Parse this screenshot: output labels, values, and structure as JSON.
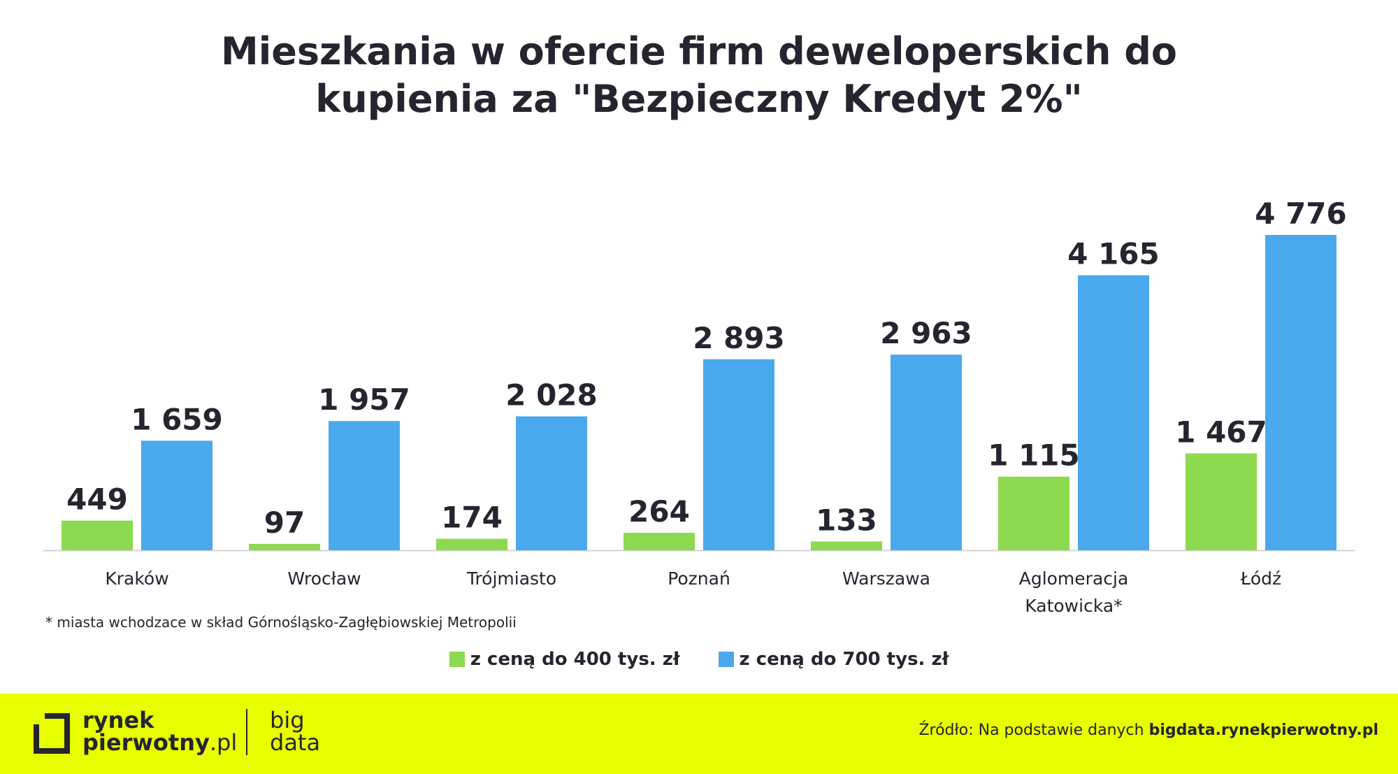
{
  "title_lines": [
    "Mieszkania w ofercie firm deweloperskich do",
    "kupienia za \"Bezpieczny Kredyt 2%\""
  ],
  "chart_data": {
    "type": "bar",
    "categories": [
      "Kraków",
      "Wrocław",
      "Trójmiasto",
      "Poznań",
      "Warszawa",
      "Aglomeracja Katowicka*",
      "Łódź"
    ],
    "category_lines": [
      [
        "Kraków"
      ],
      [
        "Wrocław"
      ],
      [
        "Trójmiasto"
      ],
      [
        "Poznań"
      ],
      [
        "Warszawa"
      ],
      [
        "Aglomeracja",
        "Katowicka*"
      ],
      [
        "Łódź"
      ]
    ],
    "series": [
      {
        "name": "z ceną do 400 tys. zł",
        "color": "#8dd94f",
        "values": [
          449,
          97,
          174,
          264,
          133,
          1115,
          1467
        ],
        "labels": [
          "449",
          "97",
          "174",
          "264",
          "133",
          "1 115",
          "1 467"
        ]
      },
      {
        "name": "z ceną do 700 tys. zł",
        "color": "#4aa9ec",
        "values": [
          1659,
          1957,
          2028,
          2893,
          2963,
          4165,
          4776
        ],
        "labels": [
          "1 659",
          "1 957",
          "2 028",
          "2 893",
          "2 963",
          "4 165",
          "4 776"
        ]
      }
    ],
    "ylim": [
      0,
      4776
    ],
    "grid": false,
    "legend_position": "bottom-center"
  },
  "footnote": "* miasta wchodzace w skład Górnośląsko-Zagłębiowskiej Metropolii",
  "footer": {
    "logo_line1": "rynek",
    "logo_line2_bold": "pierwotny",
    "logo_line2_light": ".pl",
    "bigdata_line1": "big",
    "bigdata_line2": "data",
    "source_prefix": "Źródło: Na podstawie danych ",
    "source_link": "bigdata.rynekpierwotny.pl",
    "background": "#e8ff00"
  }
}
